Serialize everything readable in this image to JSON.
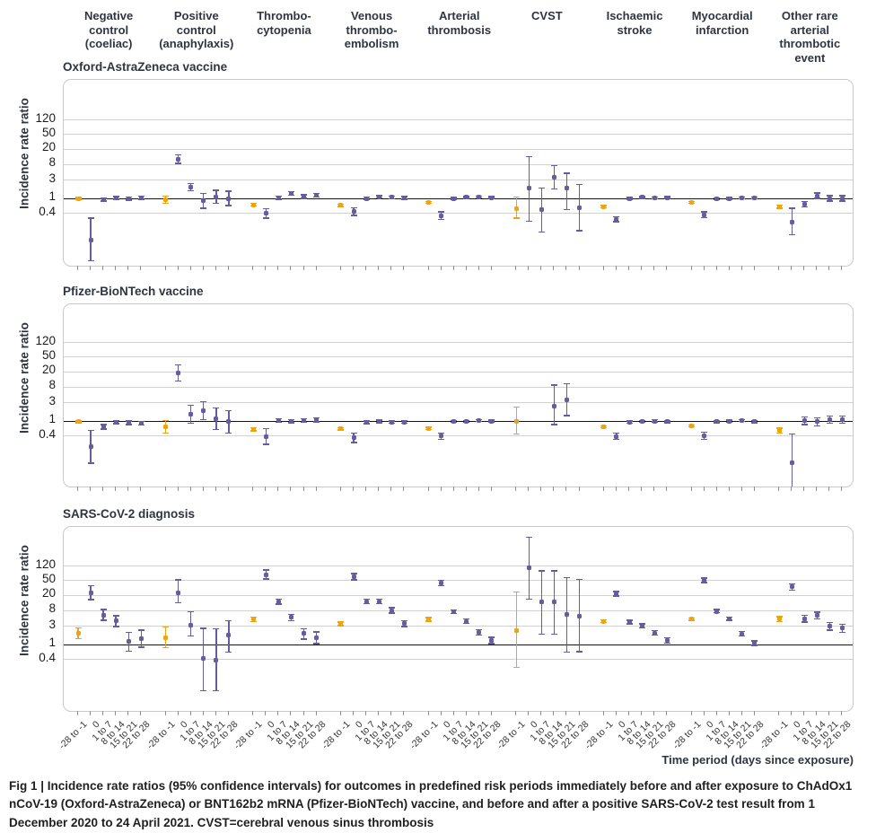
{
  "figure": {
    "y_axis_title": "Incidence rate ratio",
    "x_axis_title": "Time period (days since exposure)",
    "caption": "Fig 1 | Incidence rate ratios (95% confidence intervals) for outcomes in predefined risk periods immediately before and after exposure to ChAdOx1 nCoV-19 (Oxford-AstraZeneca) or BNT162b2 mRNA (Pfizer-BioNTech) vaccine, and before and after a positive SARS-CoV-2 test result from 1 December 2020 to 24 April 2021. CVST=cerebral venous sinus thrombosis"
  },
  "chart_data": {
    "type": "scatter",
    "subtype": "forest-plot-log-scale",
    "y_ticks": [
      120,
      50,
      20,
      8,
      3,
      1,
      0.4
    ],
    "y_axis_label": "Incidence rate ratio",
    "x_axis_label": "Time period (days since exposure)",
    "time_periods": [
      "-28 to -1",
      "0",
      "1 to 7",
      "8 to 14",
      "15 to 21",
      "22 to 28"
    ],
    "outcomes": [
      "Negative\ncontrol\n(coeliac)",
      "Positive\ncontrol\n(anaphylaxis)",
      "Thrombo-\ncytopenia",
      "Venous\nthrombo-\nembolism",
      "Arterial\nthrombosis",
      "CVST",
      "Ischaemic\nstroke",
      "Myocardial\ninfarction",
      "Other rare\narterial\nthrombotic\nevent"
    ],
    "baseline_period_color": "#f0a30e",
    "risk_period_color": "#675c9f",
    "reference_line": 1,
    "panels": [
      {
        "title": "Oxford-AstraZeneca vaccine",
        "groups": [
          [
            [
              1.0,
              0.95,
              1.06
            ],
            [
              0.08,
              0.022,
              0.3
            ],
            [
              0.92,
              0.84,
              1.01
            ],
            [
              1.03,
              0.94,
              1.12
            ],
            [
              0.98,
              0.9,
              1.07
            ],
            [
              1.03,
              0.94,
              1.13
            ]
          ],
          [
            [
              0.93,
              0.75,
              1.15
            ],
            [
              11,
              8.5,
              14.5
            ],
            [
              2.0,
              1.6,
              2.5
            ],
            [
              0.85,
              0.55,
              1.33
            ],
            [
              1.1,
              0.74,
              1.63
            ],
            [
              1.0,
              0.64,
              1.55
            ]
          ],
          [
            [
              0.68,
              0.62,
              0.74
            ],
            [
              0.4,
              0.3,
              0.54
            ],
            [
              1.04,
              0.95,
              1.14
            ],
            [
              1.35,
              1.22,
              1.49
            ],
            [
              1.12,
              1.0,
              1.25
            ],
            [
              1.2,
              1.07,
              1.35
            ]
          ],
          [
            [
              0.66,
              0.61,
              0.71
            ],
            [
              0.44,
              0.35,
              0.56
            ],
            [
              1.0,
              0.93,
              1.08
            ],
            [
              1.1,
              1.02,
              1.19
            ],
            [
              1.06,
              0.98,
              1.15
            ],
            [
              1.02,
              0.94,
              1.11
            ]
          ],
          [
            [
              0.78,
              0.74,
              0.83
            ],
            [
              0.35,
              0.28,
              0.44
            ],
            [
              1.0,
              0.94,
              1.06
            ],
            [
              1.06,
              1.0,
              1.12
            ],
            [
              1.08,
              1.02,
              1.15
            ],
            [
              1.05,
              0.99,
              1.12
            ]
          ],
          [
            [
              0.52,
              0.3,
              1.1
            ],
            [
              1.9,
              0.25,
              13
            ],
            [
              0.5,
              0.13,
              1.9
            ],
            [
              3.6,
              1.8,
              7.5
            ],
            [
              1.9,
              0.5,
              4.6
            ],
            [
              0.55,
              0.14,
              2.3
            ]
          ],
          [
            [
              0.61,
              0.57,
              0.65
            ],
            [
              0.28,
              0.24,
              0.33
            ],
            [
              1.0,
              0.95,
              1.06
            ],
            [
              1.06,
              1.0,
              1.12
            ],
            [
              1.03,
              0.97,
              1.09
            ],
            [
              1.05,
              0.99,
              1.12
            ]
          ],
          [
            [
              0.78,
              0.74,
              0.83
            ],
            [
              0.37,
              0.31,
              0.44
            ],
            [
              0.97,
              0.92,
              1.03
            ],
            [
              1.0,
              0.95,
              1.06
            ],
            [
              1.02,
              0.96,
              1.08
            ],
            [
              1.03,
              0.97,
              1.09
            ]
          ],
          [
            [
              0.61,
              0.55,
              0.67
            ],
            [
              0.24,
              0.11,
              0.55
            ],
            [
              0.7,
              0.6,
              0.83
            ],
            [
              1.17,
              1.0,
              1.38
            ],
            [
              1.0,
              0.85,
              1.19
            ],
            [
              1.0,
              0.85,
              1.19
            ]
          ]
        ]
      },
      {
        "title": "Pfizer-BioNTech vaccine",
        "groups": [
          [
            [
              0.95,
              0.9,
              1.0
            ],
            [
              0.21,
              0.076,
              0.57
            ],
            [
              0.7,
              0.61,
              0.81
            ],
            [
              0.93,
              0.85,
              1.02
            ],
            [
              0.9,
              0.81,
              0.99
            ],
            [
              0.87,
              0.77,
              0.98
            ]
          ],
          [
            [
              0.7,
              0.48,
              1.03
            ],
            [
              19,
              11.5,
              31
            ],
            [
              1.5,
              0.88,
              2.6
            ],
            [
              1.9,
              1.1,
              3.2
            ],
            [
              1.15,
              0.6,
              2.2
            ],
            [
              0.95,
              0.48,
              1.9
            ]
          ],
          [
            [
              0.6,
              0.55,
              0.66
            ],
            [
              0.39,
              0.24,
              0.62
            ],
            [
              1.02,
              0.92,
              1.13
            ],
            [
              0.99,
              0.89,
              1.1
            ],
            [
              1.03,
              0.92,
              1.15
            ],
            [
              1.07,
              0.95,
              1.2
            ]
          ],
          [
            [
              0.62,
              0.58,
              0.67
            ],
            [
              0.36,
              0.27,
              0.48
            ],
            [
              0.92,
              0.85,
              1.0
            ],
            [
              0.98,
              0.9,
              1.06
            ],
            [
              0.93,
              0.86,
              1.01
            ],
            [
              0.94,
              0.86,
              1.02
            ]
          ],
          [
            [
              0.64,
              0.6,
              0.68
            ],
            [
              0.4,
              0.33,
              0.48
            ],
            [
              0.97,
              0.91,
              1.03
            ],
            [
              0.98,
              0.92,
              1.04
            ],
            [
              1.02,
              0.96,
              1.08
            ],
            [
              1.0,
              0.94,
              1.06
            ]
          ],
          [
            [
              1.0,
              0.45,
              2.3
            ],
            null,
            null,
            [
              2.5,
              0.8,
              8.9
            ],
            [
              3.7,
              1.4,
              9.7
            ],
            null
          ],
          [
            [
              0.7,
              0.66,
              0.75
            ],
            [
              0.39,
              0.32,
              0.47
            ],
            [
              0.94,
              0.88,
              1.0
            ],
            [
              0.97,
              0.91,
              1.03
            ],
            [
              1.0,
              0.94,
              1.07
            ],
            [
              0.95,
              0.89,
              1.01
            ]
          ],
          [
            [
              0.74,
              0.69,
              0.79
            ],
            [
              0.4,
              0.32,
              0.5
            ],
            [
              0.95,
              0.89,
              1.01
            ],
            [
              0.98,
              0.92,
              1.05
            ],
            [
              1.03,
              0.97,
              1.1
            ],
            [
              0.96,
              0.9,
              1.03
            ]
          ],
          [
            [
              0.56,
              0.48,
              0.65
            ],
            [
              0.08,
              0.005,
              0.45
            ],
            [
              1.02,
              0.8,
              1.3
            ],
            [
              0.95,
              0.75,
              1.2
            ],
            [
              1.1,
              0.88,
              1.36
            ],
            [
              1.1,
              0.88,
              1.36
            ]
          ]
        ]
      },
      {
        "title": "SARS-CoV-2 diagnosis",
        "groups": [
          [
            [
              2.0,
              1.45,
              2.75
            ],
            [
              24,
              15.5,
              36
            ],
            [
              6.1,
              4.4,
              8.5
            ],
            [
              4.2,
              3.0,
              5.8
            ],
            [
              1.2,
              0.67,
              2.1
            ],
            [
              1.45,
              0.85,
              2.4
            ]
          ],
          [
            [
              1.55,
              0.82,
              2.9
            ],
            [
              24,
              13,
              52
            ],
            [
              3.2,
              1.7,
              7.4
            ],
            [
              0.42,
              0.06,
              2.7
            ],
            [
              0.38,
              0.06,
              2.6
            ],
            [
              1.75,
              0.62,
              4.3
            ]
          ],
          [
            [
              4.65,
              4.0,
              5.4
            ],
            [
              70,
              55,
              95
            ],
            [
              13.8,
              11.8,
              16.2
            ],
            [
              5.2,
              4.3,
              6.2
            ],
            [
              1.95,
              1.4,
              2.65
            ],
            [
              1.55,
              1.05,
              2.15
            ]
          ],
          [
            [
              3.5,
              3.15,
              3.9
            ],
            [
              63,
              52,
              76
            ],
            [
              13.8,
              12,
              15.8
            ],
            [
              13.8,
              12,
              15.8
            ],
            [
              8.0,
              6.8,
              9.4
            ],
            [
              3.6,
              3.0,
              4.3
            ]
          ],
          [
            [
              4.65,
              4.2,
              5.2
            ],
            [
              42,
              36,
              50
            ],
            [
              7.4,
              6.6,
              8.3
            ],
            [
              4.15,
              3.6,
              4.8
            ],
            [
              2.1,
              1.75,
              2.5
            ],
            [
              1.28,
              1.05,
              1.55
            ]
          ],
          [
            [
              2.4,
              0.25,
              25
            ],
            [
              110,
              16,
              700
            ],
            [
              13.2,
              1.85,
              90
            ],
            [
              13.2,
              1.85,
              90
            ],
            [
              6.3,
              0.62,
              60
            ],
            [
              5.6,
              0.65,
              54
            ]
          ],
          [
            [
              4.1,
              3.8,
              4.5
            ],
            [
              22.3,
              19.5,
              25.5
            ],
            [
              3.9,
              3.55,
              4.4
            ],
            [
              3.1,
              2.8,
              3.5
            ],
            [
              2.0,
              1.75,
              2.3
            ],
            [
              1.28,
              1.1,
              1.5
            ]
          ],
          [
            [
              4.7,
              4.4,
              5.1
            ],
            [
              50,
              44,
              58
            ],
            [
              7.6,
              6.9,
              8.5
            ],
            [
              4.9,
              4.4,
              5.4
            ],
            [
              1.93,
              1.7,
              2.2
            ],
            [
              1.1,
              0.95,
              1.25
            ]
          ],
          [
            [
              4.7,
              4.0,
              5.5
            ],
            [
              34,
              28,
              41
            ],
            [
              4.8,
              3.9,
              6.0
            ],
            [
              5.8,
              4.7,
              7.2
            ],
            [
              3.0,
              2.4,
              3.8
            ],
            [
              2.7,
              2.1,
              3.4
            ]
          ]
        ]
      }
    ]
  }
}
